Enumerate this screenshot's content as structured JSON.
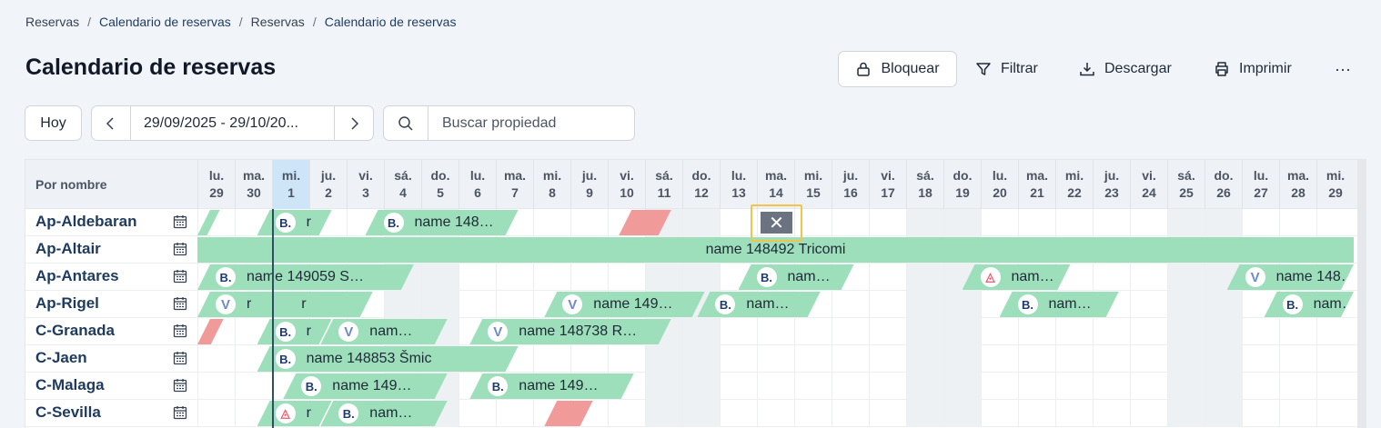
{
  "breadcrumb": [
    "Reservas",
    "Calendario de reservas",
    "Reservas",
    "Calendario de reservas"
  ],
  "breadcrumb_sep": "/",
  "title": "Calendario de reservas",
  "actions": {
    "bloquear": "Bloquear",
    "filtrar": "Filtrar",
    "descargar": "Descargar",
    "imprimir": "Imprimir",
    "more": "···"
  },
  "toolbar": {
    "today": "Hoy",
    "range": "29/09/2025 - 29/10/20...",
    "search_placeholder": "Buscar propiedad"
  },
  "grid": {
    "header_label": "Por nombre",
    "days": [
      {
        "d": "lu.",
        "n": "29"
      },
      {
        "d": "ma.",
        "n": "30"
      },
      {
        "d": "mi.",
        "n": "1"
      },
      {
        "d": "ju.",
        "n": "2"
      },
      {
        "d": "vi.",
        "n": "3"
      },
      {
        "d": "sá.",
        "n": "4"
      },
      {
        "d": "do.",
        "n": "5"
      },
      {
        "d": "lu.",
        "n": "6"
      },
      {
        "d": "ma.",
        "n": "7"
      },
      {
        "d": "mi.",
        "n": "8"
      },
      {
        "d": "ju.",
        "n": "9"
      },
      {
        "d": "vi.",
        "n": "10"
      },
      {
        "d": "sá.",
        "n": "11"
      },
      {
        "d": "do.",
        "n": "12"
      },
      {
        "d": "lu.",
        "n": "13"
      },
      {
        "d": "ma.",
        "n": "14"
      },
      {
        "d": "mi.",
        "n": "15"
      },
      {
        "d": "ju.",
        "n": "16"
      },
      {
        "d": "vi.",
        "n": "17"
      },
      {
        "d": "sá.",
        "n": "18"
      },
      {
        "d": "do.",
        "n": "19"
      },
      {
        "d": "lu.",
        "n": "20"
      },
      {
        "d": "ma.",
        "n": "21"
      },
      {
        "d": "mi.",
        "n": "22"
      },
      {
        "d": "ju.",
        "n": "23"
      },
      {
        "d": "vi.",
        "n": "24"
      },
      {
        "d": "sá.",
        "n": "25"
      },
      {
        "d": "do.",
        "n": "26"
      },
      {
        "d": "lu.",
        "n": "27"
      },
      {
        "d": "ma.",
        "n": "28"
      },
      {
        "d": "mi.",
        "n": "29"
      }
    ],
    "today_index": 2,
    "selected_cell": {
      "row": 0,
      "day": 15,
      "icon": "✕"
    },
    "rows": [
      {
        "name": "Ap-Aldebaran",
        "bookings": [
          {
            "start": 0,
            "end": 0.6,
            "text": "",
            "badge": ""
          },
          {
            "start": 1.6,
            "end": 3.6,
            "text": "r",
            "badge": "B."
          },
          {
            "start": 4.5,
            "end": 8.6,
            "text": "name 148…",
            "badge": "B."
          },
          {
            "start": 11.3,
            "end": 12.7,
            "text": "",
            "badge": "",
            "blocked": true
          }
        ]
      },
      {
        "name": "Ap-Altair",
        "bookings": [
          {
            "start": 0,
            "end": 31,
            "text": "name 148492 Tricomi",
            "badge": "",
            "full": true
          }
        ]
      },
      {
        "name": "Ap-Antares",
        "bookings": [
          {
            "start": 0,
            "end": 5.8,
            "text": "name 149059 S…",
            "badge": "B."
          },
          {
            "start": 14.5,
            "end": 17.6,
            "text": "nam…",
            "badge": "B."
          },
          {
            "start": 20.5,
            "end": 23.4,
            "text": "nam…",
            "badge": "air"
          },
          {
            "start": 27.6,
            "end": 31,
            "text": "name 148…",
            "badge": "V"
          }
        ]
      },
      {
        "name": "Ap-Rigel",
        "bookings": [
          {
            "start": 0,
            "end": 2.7,
            "text": "r",
            "badge": "V"
          },
          {
            "start": 2.3,
            "end": 4.7,
            "text": "r",
            "badge": ""
          },
          {
            "start": 9.3,
            "end": 13.6,
            "text": "name 149…",
            "badge": "V"
          },
          {
            "start": 13.4,
            "end": 16.7,
            "text": "nam…",
            "badge": "B."
          },
          {
            "start": 21.5,
            "end": 24.7,
            "text": "nam…",
            "badge": "B."
          },
          {
            "start": 28.6,
            "end": 31,
            "text": "nam…",
            "badge": "B."
          }
        ]
      },
      {
        "name": "C-Granada",
        "bookings": [
          {
            "start": 0,
            "end": 0.7,
            "text": "",
            "badge": "",
            "blocked": true
          },
          {
            "start": 1.6,
            "end": 3.6,
            "text": "r",
            "badge": "B."
          },
          {
            "start": 3.3,
            "end": 6.7,
            "text": "nam…",
            "badge": "V"
          },
          {
            "start": 7.3,
            "end": 12.7,
            "text": "name 148738 R…",
            "badge": "V"
          }
        ]
      },
      {
        "name": "C-Jaen",
        "bookings": [
          {
            "start": 1.6,
            "end": 8.6,
            "text": "name 148853 Šmic",
            "badge": "B."
          }
        ]
      },
      {
        "name": "C-Malaga",
        "bookings": [
          {
            "start": 2.3,
            "end": 6.7,
            "text": "name 149…",
            "badge": "B."
          },
          {
            "start": 7.3,
            "end": 11.7,
            "text": "name 149…",
            "badge": "B."
          }
        ]
      },
      {
        "name": "C-Sevilla",
        "bookings": [
          {
            "start": 1.6,
            "end": 3.6,
            "text": "r",
            "badge": "air"
          },
          {
            "start": 3.3,
            "end": 6.7,
            "text": "nam…",
            "badge": "B."
          },
          {
            "start": 9.3,
            "end": 10.6,
            "text": "",
            "badge": "",
            "blocked": true
          }
        ]
      }
    ]
  }
}
